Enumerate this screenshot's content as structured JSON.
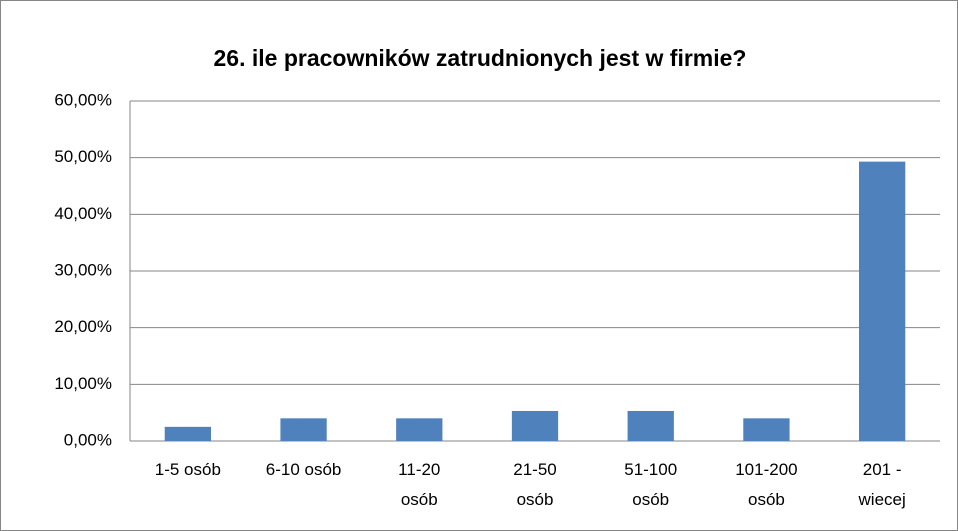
{
  "chart_data": {
    "type": "bar",
    "title": "26. ile pracowników zatrudnionych jest w firmie?",
    "categories": [
      "1-5 osób",
      "6-10 osób",
      "11-20 osób",
      "21-50 osób",
      "51-100 osób",
      "101-200 osób",
      "201 - wiecej"
    ],
    "values": [
      2.5,
      4,
      4,
      5.3,
      5.3,
      4,
      49.3
    ],
    "color": "#4f81bd",
    "ylim": [
      0,
      60
    ],
    "yticks": [
      {
        "value": 0,
        "label": "0,00%"
      },
      {
        "value": 10,
        "label": "10,00%"
      },
      {
        "value": 20,
        "label": "20,00%"
      },
      {
        "value": 30,
        "label": "30,00%"
      },
      {
        "value": 40,
        "label": "40,00%"
      },
      {
        "value": 50,
        "label": "50,00%"
      },
      {
        "value": 60,
        "label": "60,00%"
      }
    ],
    "grid": true
  }
}
